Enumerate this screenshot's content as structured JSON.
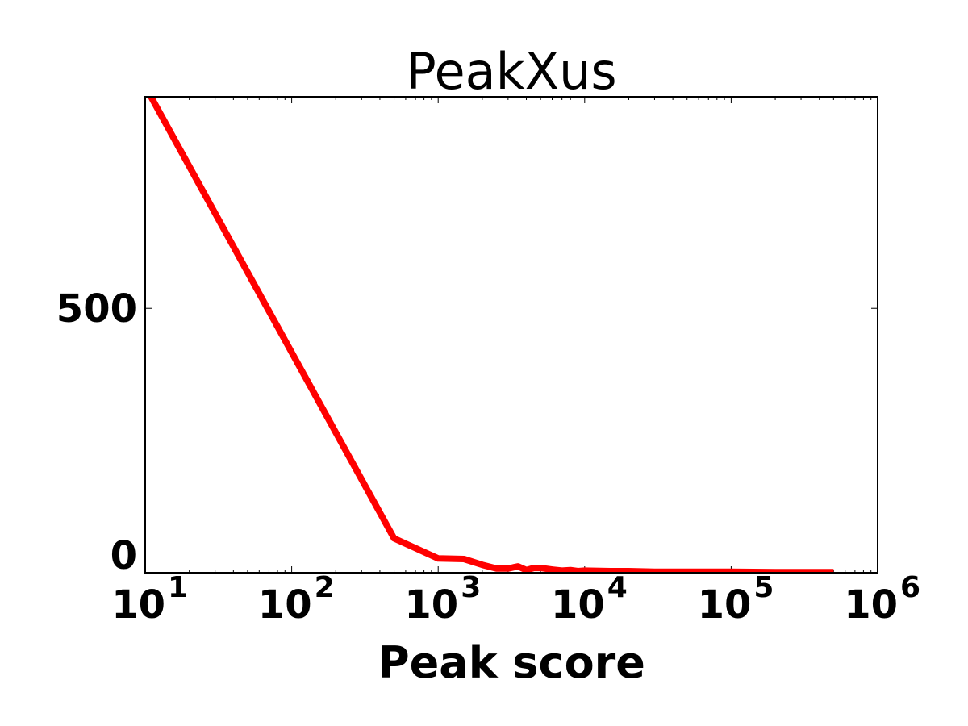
{
  "chart_data": {
    "type": "line",
    "title": "PeakXus",
    "xlabel": "Peak score",
    "ylabel": "",
    "xscale": "log",
    "xlim": [
      10,
      1000000
    ],
    "ylim": [
      0,
      900
    ],
    "xticks": [
      {
        "base": "10",
        "exp": "1"
      },
      {
        "base": "10",
        "exp": "2"
      },
      {
        "base": "10",
        "exp": "3"
      },
      {
        "base": "10",
        "exp": "4"
      },
      {
        "base": "10",
        "exp": "5"
      },
      {
        "base": "10",
        "exp": "6"
      }
    ],
    "yticks": [
      "0",
      "500"
    ],
    "grid": false,
    "color": "#ff0000",
    "x": [
      10,
      500,
      1000,
      1500,
      2000,
      2500,
      3000,
      3500,
      4000,
      4500,
      5000,
      6000,
      7000,
      8000,
      9000,
      10000,
      15000,
      20000,
      30000,
      50000,
      100000,
      200000,
      500000
    ],
    "y": [
      920,
      65,
      27,
      26,
      15,
      8,
      8,
      12,
      5,
      9,
      9,
      6,
      4,
      5,
      3,
      4,
      3,
      3,
      2,
      2,
      2,
      1,
      1
    ]
  }
}
